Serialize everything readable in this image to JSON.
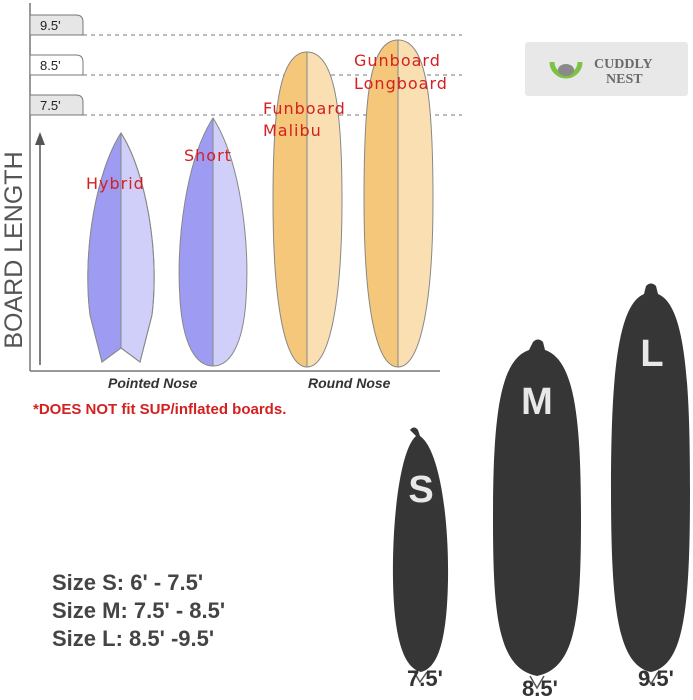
{
  "chart": {
    "axis_label": "BOARD LENGTH",
    "length_tabs": [
      "9.5'",
      "8.5'",
      "7.5'"
    ],
    "boards": [
      {
        "name": "Hybrid",
        "color": "#9d9cf2"
      },
      {
        "name": "Short",
        "color": "#9d9cf2"
      },
      {
        "name_lines": [
          "Funboard",
          "Malibu"
        ],
        "color": "#f5c77a"
      },
      {
        "name_lines": [
          "Gunboard",
          "Longboard"
        ],
        "color": "#f5c77a"
      }
    ],
    "groups": [
      "Pointed Nose",
      "Round Nose"
    ]
  },
  "notice": "*DOES NOT fit SUP/inflated boards.",
  "logo": {
    "line1": "CUDDLY",
    "line2": "NEST"
  },
  "sizes": [
    "Size S: 6' - 7.5'",
    "Size M: 7.5' - 8.5'",
    "Size L: 8.5' -9.5'"
  ],
  "bags": [
    {
      "letter": "S",
      "length": "7.5'"
    },
    {
      "letter": "M",
      "length": "8.5'"
    },
    {
      "letter": "L",
      "length": "9.5'"
    }
  ],
  "colors": {
    "accent_red": "#d42020",
    "bag": "#363636",
    "logo_green": "#7dc242"
  }
}
